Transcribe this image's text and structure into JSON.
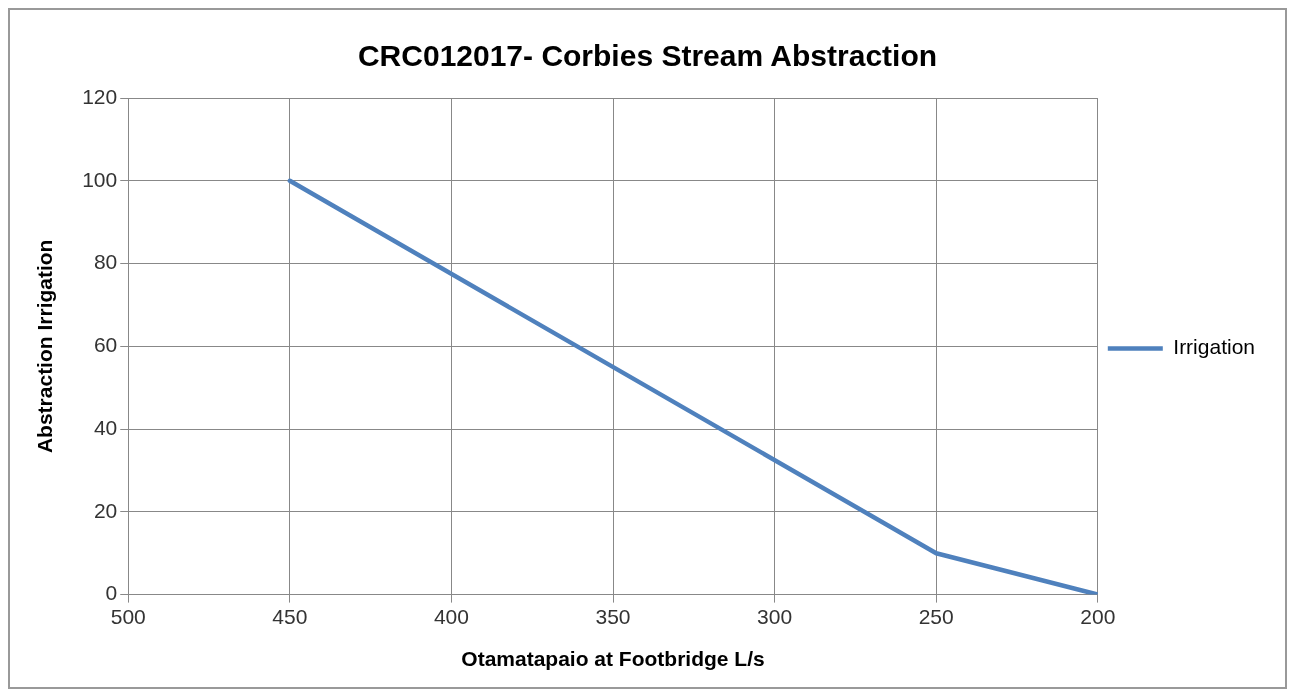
{
  "chart_data": {
    "type": "line",
    "title": "CRC012017- Corbies Stream Abstraction",
    "xlabel": "Otamatapaio at Footbridge L/s",
    "ylabel": "Abstraction Irrigation",
    "x": [
      450,
      250,
      200
    ],
    "series": [
      {
        "name": "Irrigation",
        "color": "#4f81bd",
        "values": [
          100,
          10,
          0
        ]
      }
    ],
    "xlim": [
      500,
      200
    ],
    "xticks": [
      500,
      450,
      400,
      350,
      300,
      250,
      200
    ],
    "ylim": [
      0,
      120
    ],
    "yticks": [
      0,
      20,
      40,
      60,
      80,
      100,
      120
    ],
    "grid": true,
    "legend": "right",
    "marker": "none"
  }
}
